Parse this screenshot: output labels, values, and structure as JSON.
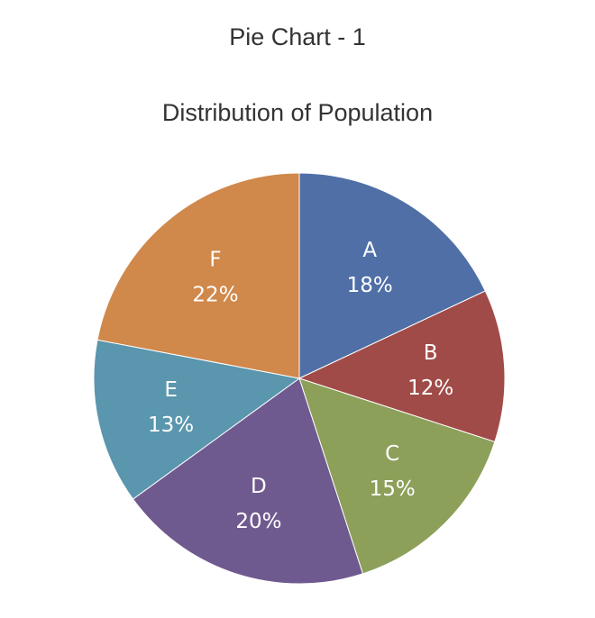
{
  "page": {
    "heading": "Pie Chart - 1"
  },
  "chart_data": {
    "type": "pie",
    "title": "Distribution of Population",
    "categories": [
      "A",
      "B",
      "C",
      "D",
      "E",
      "F"
    ],
    "values": [
      18,
      12,
      15,
      20,
      13,
      22
    ],
    "value_labels": [
      "18%",
      "12%",
      "15%",
      "20%",
      "13%",
      "22%"
    ],
    "colors": [
      "#4f6fa6",
      "#a14b48",
      "#8ca05a",
      "#6f5a8f",
      "#5a96ad",
      "#d0884b"
    ],
    "start_angle": "12 o'clock",
    "direction": "clockwise",
    "legend": "none",
    "labels_inside": true
  }
}
